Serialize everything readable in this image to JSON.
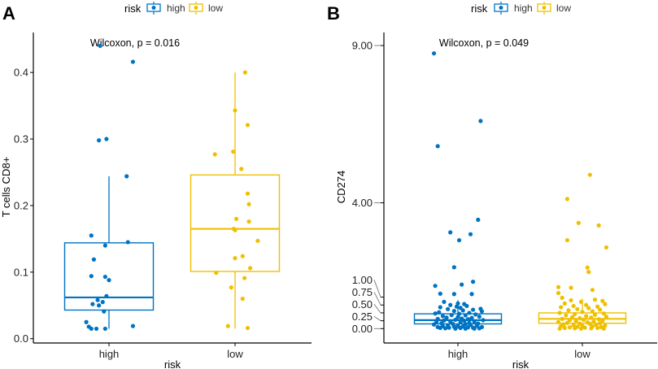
{
  "colors": {
    "high": "#0073C2",
    "low": "#EFC000",
    "axis": "#000000"
  },
  "chart_data": [
    {
      "type": "box+jitter",
      "panel_label": "A",
      "legend": {
        "title": "risk",
        "entries": [
          "high",
          "low"
        ],
        "placement": "top-center"
      },
      "annotation": "Wilcoxon, p = 0.016",
      "xlabel": "risk",
      "ylabel": "T cells CD8+",
      "categories": [
        "high",
        "low"
      ],
      "ylim": [
        0,
        0.45
      ],
      "yticks": [
        0.0,
        0.1,
        0.2,
        0.3,
        0.4
      ],
      "ytick_labels": [
        "0.0",
        "0.1",
        "0.2",
        "0.3",
        "0.4"
      ],
      "boxes": [
        {
          "group": "high",
          "whisker_low": 0.015,
          "q1": 0.043,
          "median": 0.062,
          "q3": 0.144,
          "whisker_high": 0.244
        },
        {
          "group": "low",
          "whisker_low": 0.015,
          "q1": 0.101,
          "median": 0.165,
          "q3": 0.246,
          "whisker_high": 0.4
        }
      ],
      "points": {
        "high": [
          [
            0.44,
            -0.07
          ],
          [
            0.416,
            0.19
          ],
          [
            0.298,
            -0.08
          ],
          [
            0.3,
            -0.02
          ],
          [
            0.244,
            0.14
          ],
          [
            0.155,
            -0.14
          ],
          [
            0.145,
            0.15
          ],
          [
            0.14,
            -0.03
          ],
          [
            0.119,
            -0.12
          ],
          [
            0.094,
            -0.14
          ],
          [
            0.093,
            -0.03
          ],
          [
            0.088,
            0.0
          ],
          [
            0.064,
            -0.02
          ],
          [
            0.058,
            -0.09
          ],
          [
            0.052,
            -0.13
          ],
          [
            0.05,
            -0.08
          ],
          [
            0.055,
            -0.05
          ],
          [
            0.041,
            -0.04
          ],
          [
            0.025,
            -0.18
          ],
          [
            0.018,
            -0.16
          ],
          [
            0.015,
            -0.14
          ],
          [
            0.015,
            -0.1
          ],
          [
            0.015,
            -0.03
          ],
          [
            0.019,
            0.19
          ]
        ],
        "low": [
          [
            0.4,
            0.08
          ],
          [
            0.343,
            0.0
          ],
          [
            0.321,
            0.1
          ],
          [
            0.277,
            -0.16
          ],
          [
            0.281,
            -0.015
          ],
          [
            0.255,
            0.05
          ],
          [
            0.218,
            0.1
          ],
          [
            0.202,
            0.11
          ],
          [
            0.18,
            0.01
          ],
          [
            0.176,
            0.11
          ],
          [
            0.165,
            -0.01
          ],
          [
            0.163,
            0.0
          ],
          [
            0.147,
            0.18
          ],
          [
            0.124,
            0.06
          ],
          [
            0.121,
            0.0
          ],
          [
            0.106,
            0.12
          ],
          [
            0.099,
            -0.15
          ],
          [
            0.091,
            0.075
          ],
          [
            0.077,
            -0.03
          ],
          [
            0.06,
            0.06
          ],
          [
            0.019,
            -0.056
          ],
          [
            0.016,
            0.1
          ]
        ]
      }
    },
    {
      "type": "box+jitter",
      "panel_label": "B",
      "legend": {
        "title": "risk",
        "entries": [
          "high",
          "low"
        ],
        "placement": "top-center"
      },
      "annotation": "Wilcoxon, p = 0.049",
      "xlabel": "risk",
      "ylabel": "CD274",
      "categories": [
        "high",
        "low"
      ],
      "ylim": [
        -0.45,
        9.4
      ],
      "yticks": [
        0.0,
        0.25,
        0.5,
        0.75,
        1.0,
        4.0,
        9.0
      ],
      "ytick_labels": [
        "0.00",
        "0.25",
        "0.50",
        "0.75",
        "1.00",
        "4.00",
        "9.00"
      ],
      "boxes": [
        {
          "group": "high",
          "whisker_low": 0.0,
          "q1": 0.15,
          "median": 0.27,
          "q3": 0.47,
          "whisker_high": 0.9
        },
        {
          "group": "low",
          "whisker_low": 0.0,
          "q1": 0.17,
          "median": 0.31,
          "q3": 0.5,
          "whisker_high": 0.95
        }
      ],
      "points": {
        "high": [
          [
            8.75,
            -0.19
          ],
          [
            6.6,
            0.18
          ],
          [
            5.8,
            -0.16
          ],
          [
            3.46,
            0.16
          ],
          [
            3.06,
            -0.06
          ],
          [
            3.0,
            0.1
          ],
          [
            2.81,
            0.01
          ],
          [
            1.95,
            -0.03
          ],
          [
            1.49,
            0.12
          ],
          [
            1.4,
            0.03
          ],
          [
            1.36,
            -0.18
          ],
          [
            1.11,
            -0.14
          ],
          [
            1.1,
            -0.03
          ],
          [
            1.1,
            0.11
          ],
          [
            0.85,
            -0.11
          ],
          [
            0.8,
            0.0
          ],
          [
            0.78,
            0.05
          ],
          [
            0.75,
            -0.06
          ],
          [
            0.72,
            0.07
          ],
          [
            0.7,
            -0.01
          ],
          [
            0.68,
            -0.14
          ],
          [
            0.66,
            0.02
          ],
          [
            0.63,
            0.18
          ],
          [
            0.62,
            -0.08
          ],
          [
            0.6,
            0.12
          ],
          [
            0.58,
            0.04
          ],
          [
            0.56,
            -0.03
          ],
          [
            0.55,
            0.19
          ],
          [
            0.52,
            -0.15
          ],
          [
            0.5,
            0.09
          ],
          [
            0.48,
            -0.18
          ],
          [
            0.47,
            0.01
          ],
          [
            0.45,
            0.14
          ],
          [
            0.43,
            -0.05
          ],
          [
            0.42,
            0.06
          ],
          [
            0.4,
            -0.12
          ],
          [
            0.38,
            0.17
          ],
          [
            0.37,
            0.0
          ],
          [
            0.35,
            -0.09
          ],
          [
            0.34,
            0.11
          ],
          [
            0.32,
            0.03
          ],
          [
            0.31,
            -0.16
          ],
          [
            0.3,
            0.08
          ],
          [
            0.28,
            -0.02
          ],
          [
            0.27,
            0.2
          ],
          [
            0.26,
            -0.11
          ],
          [
            0.25,
            0.05
          ],
          [
            0.23,
            -0.06
          ],
          [
            0.22,
            0.13
          ],
          [
            0.21,
            -0.17
          ],
          [
            0.2,
            0.02
          ],
          [
            0.18,
            0.09
          ],
          [
            0.17,
            -0.13
          ],
          [
            0.16,
            0.16
          ],
          [
            0.15,
            -0.04
          ],
          [
            0.14,
            0.06
          ],
          [
            0.13,
            -0.19
          ],
          [
            0.12,
            0.1
          ],
          [
            0.11,
            -0.08
          ],
          [
            0.1,
            0.0
          ],
          [
            0.09,
            0.15
          ],
          [
            0.08,
            -0.12
          ],
          [
            0.07,
            0.04
          ],
          [
            0.06,
            -0.03
          ],
          [
            0.05,
            0.19
          ],
          [
            0.05,
            -0.16
          ],
          [
            0.04,
            0.08
          ],
          [
            0.03,
            -0.07
          ],
          [
            0.03,
            0.12
          ],
          [
            0.02,
            -0.14
          ],
          [
            0.02,
            0.02
          ],
          [
            0.01,
            0.17
          ],
          [
            0.01,
            -0.1
          ],
          [
            0.0,
            0.06
          ],
          [
            0.0,
            -0.02
          ],
          [
            0.0,
            0.13
          ]
        ],
        "low": [
          [
            4.89,
            0.06
          ],
          [
            4.12,
            -0.12
          ],
          [
            3.36,
            -0.03
          ],
          [
            3.28,
            0.13
          ],
          [
            2.81,
            -0.12
          ],
          [
            2.58,
            0.19
          ],
          [
            1.94,
            0.04
          ],
          [
            1.8,
            0.05
          ],
          [
            1.32,
            -0.19
          ],
          [
            1.3,
            -0.09
          ],
          [
            1.23,
            0.08
          ],
          [
            1.13,
            -0.19
          ],
          [
            0.98,
            -0.16
          ],
          [
            0.92,
            0.1
          ],
          [
            0.9,
            -0.09
          ],
          [
            0.88,
            0.16
          ],
          [
            0.85,
            -0.01
          ],
          [
            0.8,
            -0.14
          ],
          [
            0.78,
            0.18
          ],
          [
            0.75,
            0.03
          ],
          [
            0.72,
            -0.07
          ],
          [
            0.7,
            0.12
          ],
          [
            0.68,
            -0.17
          ],
          [
            0.65,
            0.05
          ],
          [
            0.62,
            -0.04
          ],
          [
            0.6,
            0.14
          ],
          [
            0.58,
            -0.11
          ],
          [
            0.55,
            0.08
          ],
          [
            0.53,
            0.0
          ],
          [
            0.5,
            -0.18
          ],
          [
            0.48,
            0.17
          ],
          [
            0.46,
            -0.06
          ],
          [
            0.44,
            0.1
          ],
          [
            0.42,
            -0.13
          ],
          [
            0.4,
            0.03
          ],
          [
            0.38,
            0.19
          ],
          [
            0.36,
            -0.08
          ],
          [
            0.35,
            0.07
          ],
          [
            0.33,
            -0.02
          ],
          [
            0.31,
            -0.16
          ],
          [
            0.3,
            0.13
          ],
          [
            0.28,
            0.01
          ],
          [
            0.27,
            -0.1
          ],
          [
            0.25,
            0.16
          ],
          [
            0.24,
            -0.05
          ],
          [
            0.22,
            0.09
          ],
          [
            0.21,
            -0.19
          ],
          [
            0.2,
            0.04
          ],
          [
            0.18,
            -0.12
          ],
          [
            0.17,
            0.14
          ],
          [
            0.16,
            -0.02
          ],
          [
            0.15,
            0.06
          ],
          [
            0.13,
            -0.15
          ],
          [
            0.12,
            0.11
          ],
          [
            0.11,
            -0.07
          ],
          [
            0.1,
            0.18
          ],
          [
            0.09,
            0.0
          ],
          [
            0.08,
            -0.17
          ],
          [
            0.07,
            0.08
          ],
          [
            0.06,
            -0.04
          ],
          [
            0.05,
            0.15
          ],
          [
            0.04,
            -0.1
          ],
          [
            0.03,
            0.02
          ],
          [
            0.02,
            -0.14
          ],
          [
            0.02,
            0.12
          ],
          [
            0.01,
            -0.06
          ],
          [
            0.01,
            0.07
          ],
          [
            0.0,
            -0.01
          ],
          [
            0.0,
            0.17
          ],
          [
            0.0,
            -0.18
          ]
        ]
      }
    }
  ]
}
